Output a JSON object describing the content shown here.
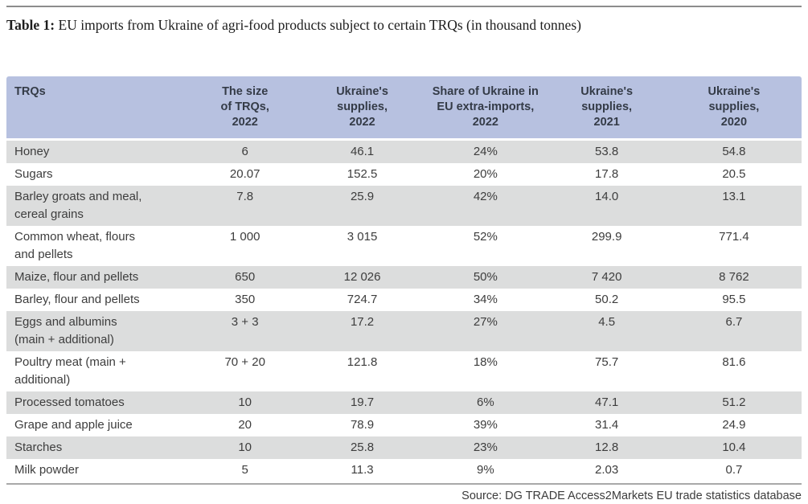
{
  "page": {
    "title_label": "Table 1:",
    "title_text": "EU imports from Ukraine of agri-food products subject to certain TRQs (in thousand tonnes)",
    "source": "Source: DG TRADE Access2Markets EU trade statistics database"
  },
  "colors": {
    "header_bg": "#b7c1e0",
    "row_alt_bg": "#dcdddd",
    "row_bg": "#ffffff",
    "header_text": "#343b47",
    "body_text": "#3d3d3d",
    "rule_top": "#8c8c8c",
    "rule_bottom": "#a9a9a9"
  },
  "table": {
    "headers": [
      "TRQs",
      "The size\nof TRQs,\n2022",
      "Ukraine's\nsupplies,\n2022",
      "Share of Ukraine in\nEU extra-imports,\n2022",
      "Ukraine's\nsupplies,\n2021",
      "Ukraine's\nsupplies,\n2020"
    ],
    "col_widths": [
      "23%",
      "14%",
      "15.5%",
      "15.5%",
      "15%",
      "17%"
    ],
    "rows": [
      [
        "Honey",
        "6",
        "46.1",
        "24%",
        "53.8",
        "54.8"
      ],
      [
        "Sugars",
        "20.07",
        "152.5",
        "20%",
        "17.8",
        "20.5"
      ],
      [
        "Barley groats and meal,\ncereal grains",
        "7.8",
        "25.9",
        "42%",
        "14.0",
        "13.1"
      ],
      [
        "Common wheat, flours\nand pellets",
        "1 000",
        "3 015",
        "52%",
        "299.9",
        "771.4"
      ],
      [
        "Maize, flour and pellets",
        "650",
        "12 026",
        "50%",
        "7 420",
        "8 762"
      ],
      [
        "Barley, flour and pellets",
        "350",
        "724.7",
        "34%",
        "50.2",
        "95.5"
      ],
      [
        "Eggs and albumins\n(main + additional)",
        "3 + 3",
        "17.2",
        "27%",
        "4.5",
        "6.7"
      ],
      [
        "Poultry meat (main + additional)",
        "70 + 20",
        "121.8",
        "18%",
        "75.7",
        "81.6"
      ],
      [
        "Processed tomatoes",
        "10",
        "19.7",
        "6%",
        "47.1",
        "51.2"
      ],
      [
        "Grape and apple juice",
        "20",
        "78.9",
        "39%",
        "31.4",
        "24.9"
      ],
      [
        "Starches",
        "10",
        "25.8",
        "23%",
        "12.8",
        "10.4"
      ],
      [
        "Milk powder",
        "5",
        "11.3",
        "9%",
        "2.03",
        "0.7"
      ]
    ]
  }
}
